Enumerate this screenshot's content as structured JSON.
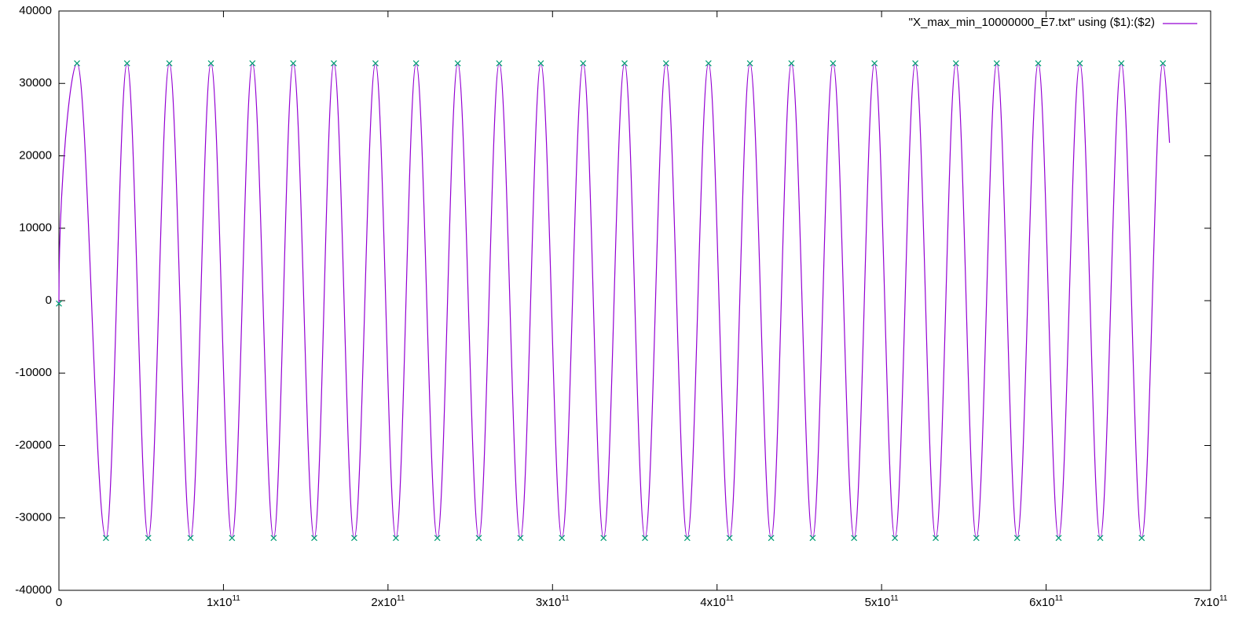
{
  "chart_data": {
    "type": "line",
    "xlim": [
      0,
      700000000000.0
    ],
    "ylim": [
      -40000,
      40000
    ],
    "xticks": [
      0,
      {
        "value": 100000000000.0,
        "label": "1x10",
        "sup": "11"
      },
      {
        "value": 200000000000.0,
        "label": "2x10",
        "sup": "11"
      },
      {
        "value": 300000000000.0,
        "label": "3x10",
        "sup": "11"
      },
      {
        "value": 400000000000.0,
        "label": "4x10",
        "sup": "11"
      },
      {
        "value": 500000000000.0,
        "label": "5x10",
        "sup": "11"
      },
      {
        "value": 600000000000.0,
        "label": "6x10",
        "sup": "11"
      },
      {
        "value": 700000000000.0,
        "label": "7x10",
        "sup": "11"
      }
    ],
    "yticks": [
      -40000,
      -30000,
      -20000,
      -10000,
      0,
      10000,
      20000,
      30000,
      40000
    ],
    "grid": false,
    "legend": "top-right",
    "series": [
      {
        "name": "\"X_max_min_10000000_E7.txt\" using ($1):($2)",
        "color": "#9400d3",
        "style": "lines",
        "x": [
          0,
          11000000000.0,
          28600000000.0,
          41400000000.0,
          54300000000.0,
          67100000000.0,
          80000000000.0,
          92400000000.0,
          105200000000.0,
          117600000000.0,
          130500000000.0,
          142400000000.0,
          155200000000.0,
          167100000000.0,
          179500000000.0,
          192400000000.0,
          204800000000.0,
          217100000000.0,
          230000000000.0,
          242400000000.0,
          255200000000.0,
          267600000000.0,
          280500000000.0,
          292900000000.0,
          305700000000.0,
          318600000000.0,
          331000000000.0,
          343800000000.0,
          356200000000.0,
          369000000000.0,
          381900000000.0,
          394800000000.0,
          407600000000.0,
          420000000000.0,
          432900000000.0,
          445200000000.0,
          458100000000.0,
          470500000000.0,
          483300000000.0,
          495700000000.0,
          508100000000.0,
          520500000000.0,
          532900000000.0,
          545200000000.0,
          557600000000.0,
          570000000000.0,
          582400000000.0,
          595200000000.0,
          607600000000.0,
          620500000000.0,
          632900000000.0,
          645700000000.0,
          658100000000.0,
          671000000000.0,
          675000000000.0
        ],
        "values": [
          -300,
          32767,
          -32768,
          32767,
          -32768,
          32767,
          -32768,
          32767,
          -32768,
          32767,
          -32768,
          32767,
          -32768,
          32767,
          -32768,
          32767,
          -32768,
          32767,
          -32768,
          32767,
          -32768,
          32767,
          -32768,
          32767,
          -32768,
          32767,
          -32768,
          32767,
          -32768,
          32767,
          -32768,
          32767,
          -32768,
          32767,
          -32768,
          32767,
          -32768,
          32767,
          -32768,
          32767,
          -32768,
          32767,
          -32768,
          32767,
          -32768,
          32767,
          -32768,
          32767,
          -32768,
          32767,
          -32768,
          32767,
          -32768,
          32767,
          21800
        ]
      },
      {
        "color": "#009e73",
        "style": "points",
        "x": [
          0,
          11000000000.0,
          28600000000.0,
          41400000000.0,
          54300000000.0,
          67100000000.0,
          80000000000.0,
          92400000000.0,
          105200000000.0,
          117600000000.0,
          130500000000.0,
          142400000000.0,
          155200000000.0,
          167100000000.0,
          179500000000.0,
          192400000000.0,
          204800000000.0,
          217100000000.0,
          230000000000.0,
          242400000000.0,
          255200000000.0,
          267600000000.0,
          280500000000.0,
          292900000000.0,
          305700000000.0,
          318600000000.0,
          331000000000.0,
          343800000000.0,
          356200000000.0,
          369000000000.0,
          381900000000.0,
          394800000000.0,
          407600000000.0,
          420000000000.0,
          432900000000.0,
          445200000000.0,
          458100000000.0,
          470500000000.0,
          483300000000.0,
          495700000000.0,
          508100000000.0,
          520500000000.0,
          532900000000.0,
          545200000000.0,
          557600000000.0,
          570000000000.0,
          582400000000.0,
          595200000000.0,
          607600000000.0,
          620500000000.0,
          632900000000.0,
          645700000000.0,
          658100000000.0,
          671000000000.0
        ],
        "values": [
          -400,
          32767,
          -32768,
          32767,
          -32768,
          32767,
          -32768,
          32767,
          -32768,
          32767,
          -32768,
          32767,
          -32768,
          32767,
          -32768,
          32767,
          -32768,
          32767,
          -32768,
          32767,
          -32768,
          32767,
          -32768,
          32767,
          -32768,
          32767,
          -32768,
          32767,
          -32768,
          32767,
          -32768,
          32767,
          -32768,
          32767,
          -32768,
          32767,
          -32768,
          32767,
          -32768,
          32767,
          -32768,
          32767,
          -32768,
          32767,
          -32768,
          32767,
          -32768,
          32767,
          -32768,
          32767,
          -32768,
          32767,
          -32768,
          32767
        ]
      }
    ]
  }
}
